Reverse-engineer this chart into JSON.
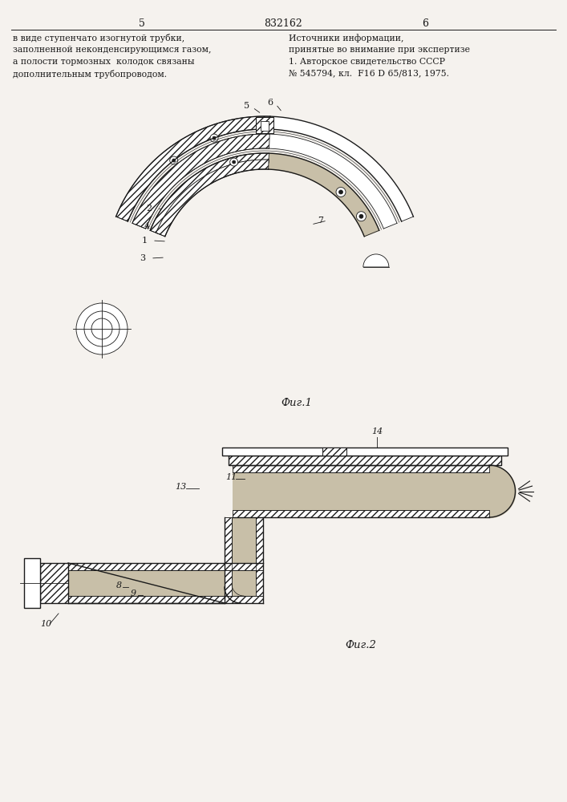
{
  "title": "832162",
  "page_left": "5",
  "page_right": "6",
  "text_left": "в виде ступенчато изогнутой трубки,\nзаполненной неконденсирующимся газом,\nа полости тормозных  колодок связаны\nдополнительным трубопроводом.",
  "text_right": "Источники информации,\nпринятые во внимание при экспертизе\n1. Авторское свидетельство СССР\n№ 545794, кл.  F16 D 65/813, 1975.",
  "fig1_label": "Фиг.1",
  "fig2_label": "Фиг.2",
  "bg_color": "#f5f2ee",
  "line_color": "#1a1a1a",
  "fill_dotted": "#c8bfa8",
  "fill_light": "#d4c9b0"
}
